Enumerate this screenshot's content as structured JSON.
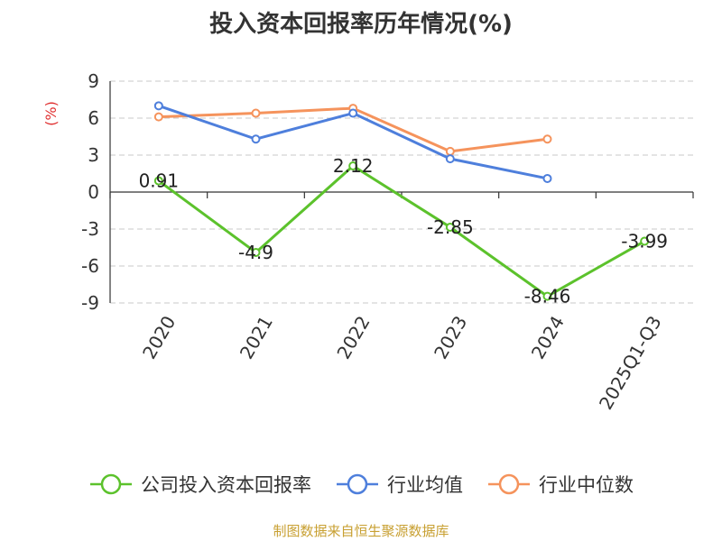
{
  "chart_data": {
    "type": "line",
    "title": "投入资本回报率历年情况(%)",
    "ylabel": "(%)",
    "xlabel": "",
    "categories": [
      "2020",
      "2021",
      "2022",
      "2023",
      "2024",
      "2025Q1-Q3"
    ],
    "y_ticks": [
      9,
      6,
      3,
      0,
      -3,
      -6,
      -9
    ],
    "ylim": [
      -9,
      9
    ],
    "grid": "horizontal-dashed",
    "legend_position": "bottom",
    "series": [
      {
        "name": "公司投入资本回报率",
        "color": "#5cc22c",
        "values": [
          0.91,
          -4.9,
          2.12,
          -2.85,
          -8.46,
          -3.99
        ],
        "labels": [
          "0.91",
          "-4.9",
          "2.12",
          "-2.85",
          "-8.46",
          "-3.99"
        ]
      },
      {
        "name": "行业均值",
        "color": "#4e7fdc",
        "values": [
          7.0,
          4.3,
          6.4,
          2.7,
          1.1,
          null
        ]
      },
      {
        "name": "行业中位数",
        "color": "#f5935c",
        "values": [
          6.1,
          6.4,
          6.8,
          3.3,
          4.3,
          null
        ]
      }
    ]
  },
  "source": {
    "text": "制图数据来自恒生聚源数据库",
    "color": "#c8a032"
  },
  "ylabel_color": "#e03030"
}
